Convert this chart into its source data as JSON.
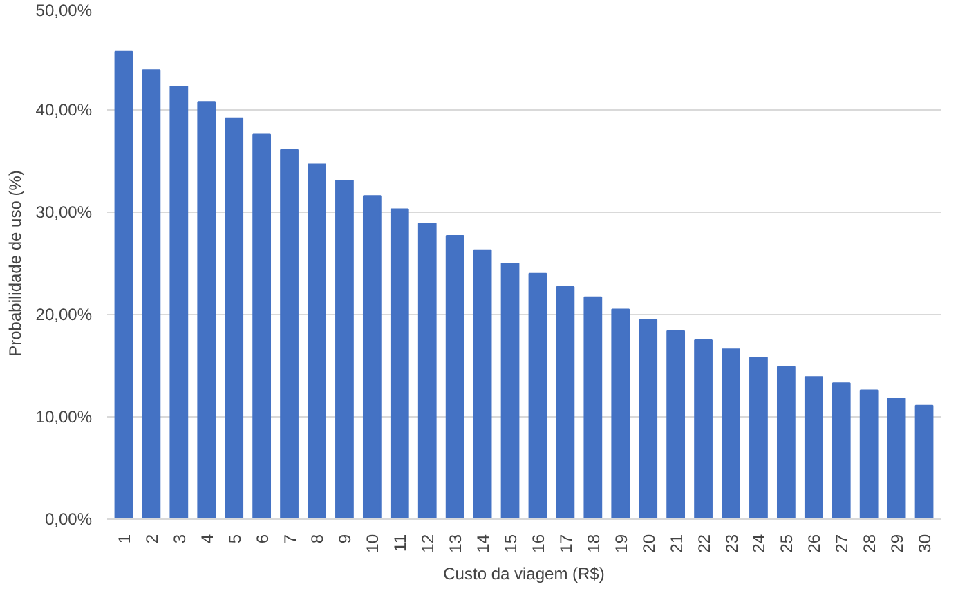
{
  "chart_data": {
    "type": "bar",
    "xlabel": "Custo da viagem (R$)",
    "ylabel": "Probabilidade de uso (%)",
    "categories": [
      "1",
      "2",
      "3",
      "4",
      "5",
      "6",
      "7",
      "8",
      "9",
      "10",
      "11",
      "12",
      "13",
      "14",
      "15",
      "16",
      "17",
      "18",
      "19",
      "20",
      "21",
      "22",
      "23",
      "24",
      "25",
      "26",
      "27",
      "28",
      "29",
      "30"
    ],
    "values": [
      45.7,
      43.9,
      42.3,
      40.8,
      39.2,
      37.6,
      36.1,
      34.7,
      33.1,
      31.6,
      30.3,
      28.9,
      27.7,
      26.3,
      25.0,
      24.0,
      22.7,
      21.7,
      20.5,
      19.5,
      18.4,
      17.5,
      16.6,
      15.8,
      14.9,
      13.9,
      13.3,
      12.6,
      11.8,
      11.1
    ],
    "color": "#4472c4",
    "ylim": [
      0,
      50
    ],
    "yticks": [
      {
        "value": 0,
        "label": "0,00%"
      },
      {
        "value": 10,
        "label": "10,00%"
      },
      {
        "value": 20,
        "label": "20,00%"
      },
      {
        "value": 30,
        "label": "30,00%"
      },
      {
        "value": 40,
        "label": "40,00%"
      },
      {
        "value": 50,
        "label": "50,00%"
      }
    ],
    "grid": "y"
  }
}
